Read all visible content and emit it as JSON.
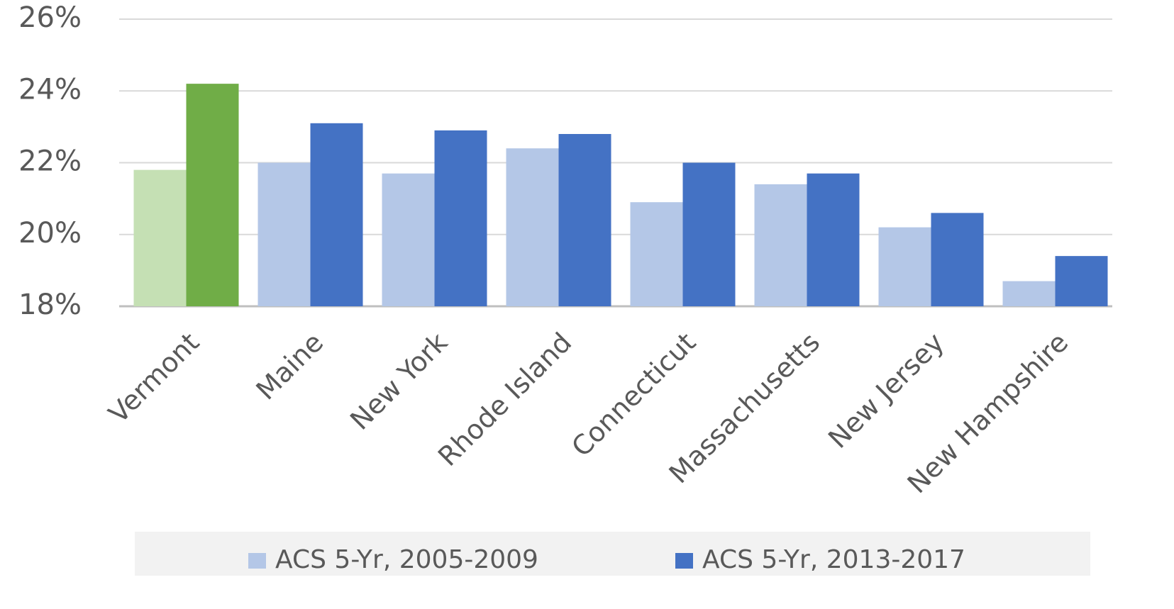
{
  "chart_data": {
    "type": "bar",
    "categories": [
      "Vermont",
      "Maine",
      "New York",
      "Rhode Island",
      "Connecticut",
      "Massachusetts",
      "New Jersey",
      "New Hampshire"
    ],
    "series": [
      {
        "name": "ACS 5-Yr, 2005-2009",
        "color": "#b4c7e7",
        "colors": [
          "#c5e0b4",
          "#b4c7e7",
          "#b4c7e7",
          "#b4c7e7",
          "#b4c7e7",
          "#b4c7e7",
          "#b4c7e7",
          "#b4c7e7"
        ],
        "values": [
          21.8,
          22.0,
          21.7,
          22.4,
          20.9,
          21.4,
          20.2,
          18.7
        ]
      },
      {
        "name": "ACS 5-Yr, 2013-2017",
        "color": "#4472c4",
        "colors": [
          "#70ad47",
          "#4472c4",
          "#4472c4",
          "#4472c4",
          "#4472c4",
          "#4472c4",
          "#4472c4",
          "#4472c4"
        ],
        "values": [
          24.2,
          23.1,
          22.9,
          22.8,
          22.0,
          21.7,
          20.6,
          19.4
        ]
      }
    ],
    "ylim": [
      18,
      26
    ],
    "yticks": [
      {
        "value": 18,
        "label": "18%"
      },
      {
        "value": 20,
        "label": "20%"
      },
      {
        "value": 22,
        "label": "22%"
      },
      {
        "value": 24,
        "label": "24%"
      },
      {
        "value": 26,
        "label": "26%"
      }
    ],
    "grid": true,
    "legend": "bottom"
  }
}
